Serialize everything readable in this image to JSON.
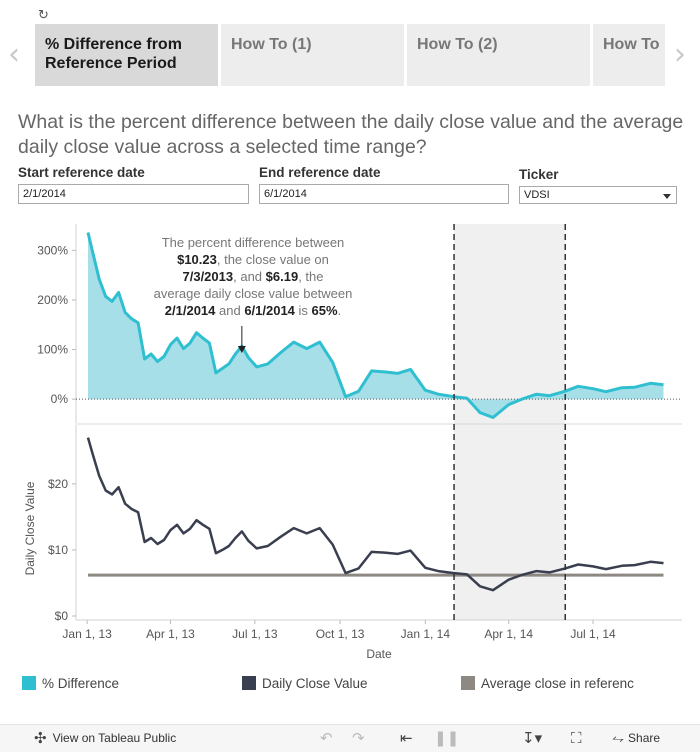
{
  "tabs": [
    {
      "label": "% Difference from\nReference Period",
      "active": true
    },
    {
      "label": "How To (1)",
      "active": false
    },
    {
      "label": "How To (2)",
      "active": false
    },
    {
      "label": "How To",
      "active": false
    }
  ],
  "question": "What is the percent difference between the daily close value and the average daily close value across a selected time range?",
  "filters": {
    "start": {
      "label": "Start reference date",
      "value": "2/1/2014"
    },
    "end": {
      "label": "End reference date",
      "value": "6/1/2014"
    },
    "ticker": {
      "label": "Ticker",
      "value": "VDSI"
    }
  },
  "chart_data": {
    "type": "line",
    "colors": {
      "pct": "#2fbfd0",
      "pct_fill": "#a6dfe8",
      "close": "#3a3f4f",
      "avg": "#8e8883",
      "band": "#f0f0f0"
    },
    "reference_start": "2/1/2014",
    "reference_end": "6/1/2014",
    "xlabel": "Date",
    "xticks": [
      {
        "label": "Jan 1, 13",
        "date": "2013-01-01"
      },
      {
        "label": "Apr 1, 13",
        "date": "2013-04-01"
      },
      {
        "label": "Jul 1, 13",
        "date": "2013-07-01"
      },
      {
        "label": "Oct 1, 13",
        "date": "2013-10-01"
      },
      {
        "label": "Jan 1, 14",
        "date": "2014-01-01"
      },
      {
        "label": "Apr 1, 14",
        "date": "2014-04-01"
      },
      {
        "label": "Jul 1, 14",
        "date": "2014-07-01"
      }
    ],
    "top": {
      "name": "% Difference",
      "ylim": [
        -40,
        345
      ],
      "yticks": [
        {
          "v": 0,
          "label": "0%"
        },
        {
          "v": 100,
          "label": "100%"
        },
        {
          "v": 200,
          "label": "200%"
        },
        {
          "v": 300,
          "label": "300%"
        }
      ]
    },
    "bottom": {
      "name": "Daily Close Value",
      "ylabel": "Daily Close Value",
      "ylim": [
        0,
        28
      ],
      "yticks": [
        {
          "v": 0,
          "label": "$0"
        },
        {
          "v": 10,
          "label": "$10"
        },
        {
          "v": 20,
          "label": "$20"
        }
      ],
      "average": 6.19
    },
    "series": {
      "dates": [
        "2013-01-02",
        "2013-01-07",
        "2013-01-14",
        "2013-01-21",
        "2013-01-28",
        "2013-02-04",
        "2013-02-11",
        "2013-02-18",
        "2013-02-25",
        "2013-03-04",
        "2013-03-11",
        "2013-03-18",
        "2013-03-25",
        "2013-04-01",
        "2013-04-08",
        "2013-04-15",
        "2013-04-22",
        "2013-04-29",
        "2013-05-06",
        "2013-05-13",
        "2013-05-20",
        "2013-05-27",
        "2013-06-03",
        "2013-06-10",
        "2013-06-17",
        "2013-06-24",
        "2013-07-03",
        "2013-07-15",
        "2013-07-29",
        "2013-08-12",
        "2013-08-26",
        "2013-09-09",
        "2013-09-23",
        "2013-10-07",
        "2013-10-21",
        "2013-11-04",
        "2013-11-18",
        "2013-12-02",
        "2013-12-16",
        "2014-01-01",
        "2014-01-15",
        "2014-02-01",
        "2014-02-15",
        "2014-03-01",
        "2014-03-15",
        "2014-04-01",
        "2014-04-15",
        "2014-05-01",
        "2014-05-15",
        "2014-06-01",
        "2014-06-15",
        "2014-07-01",
        "2014-07-15",
        "2014-08-01",
        "2014-08-15",
        "2014-09-01",
        "2014-09-15"
      ],
      "close": [
        27.0,
        24.5,
        21.2,
        19.0,
        18.4,
        19.5,
        17.0,
        16.2,
        15.7,
        11.2,
        11.8,
        10.9,
        11.5,
        13.0,
        13.8,
        12.5,
        13.2,
        14.5,
        13.8,
        13.2,
        9.5,
        10.0,
        10.6,
        11.8,
        12.8,
        11.4,
        10.23,
        10.6,
        12.0,
        13.3,
        12.5,
        13.3,
        10.8,
        6.5,
        7.2,
        9.7,
        9.6,
        9.4,
        9.9,
        7.3,
        6.8,
        6.5,
        6.3,
        4.5,
        3.9,
        5.5,
        6.2,
        6.8,
        6.6,
        7.2,
        7.8,
        7.5,
        7.1,
        7.6,
        7.7,
        8.2,
        8.0
      ],
      "pct": [
        336,
        296,
        242,
        207,
        197,
        215,
        175,
        162,
        154,
        81,
        91,
        76,
        86,
        110,
        123,
        102,
        113,
        134,
        123,
        113,
        53,
        62,
        71,
        91,
        107,
        84,
        65,
        71,
        94,
        115,
        102,
        115,
        74,
        5,
        16,
        57,
        55,
        52,
        60,
        18,
        10,
        5,
        2,
        -27,
        -37,
        -11,
        0,
        10,
        7,
        16,
        26,
        21,
        15,
        23,
        24,
        32,
        29
      ]
    },
    "annotation": {
      "lines": [
        [
          {
            "t": "The percent difference between",
            "b": false
          }
        ],
        [
          {
            "t": "$10.23",
            "b": true
          },
          {
            "t": ", the close value on",
            "b": false
          }
        ],
        [
          {
            "t": "7/3/2013",
            "b": true
          },
          {
            "t": ", and ",
            "b": false
          },
          {
            "t": "$6.19",
            "b": true
          },
          {
            "t": ", the",
            "b": false
          }
        ],
        [
          {
            "t": "average daily close value between",
            "b": false
          }
        ],
        [
          {
            "t": "2/1/2014",
            "b": true
          },
          {
            "t": " and ",
            "b": false
          },
          {
            "t": "6/1/2014",
            "b": true
          },
          {
            "t": " is ",
            "b": false
          },
          {
            "t": "65%",
            "b": true
          },
          {
            "t": ".",
            "b": false
          }
        ]
      ]
    }
  },
  "legend": [
    {
      "label": "% Difference",
      "color": "#2fbfd0"
    },
    {
      "label": "Daily Close Value",
      "color": "#3a3f4f"
    },
    {
      "label": "Average close in referenc",
      "color": "#8e8883"
    }
  ],
  "footer": {
    "view_label": "View on Tableau Public",
    "share_label": "Share"
  }
}
